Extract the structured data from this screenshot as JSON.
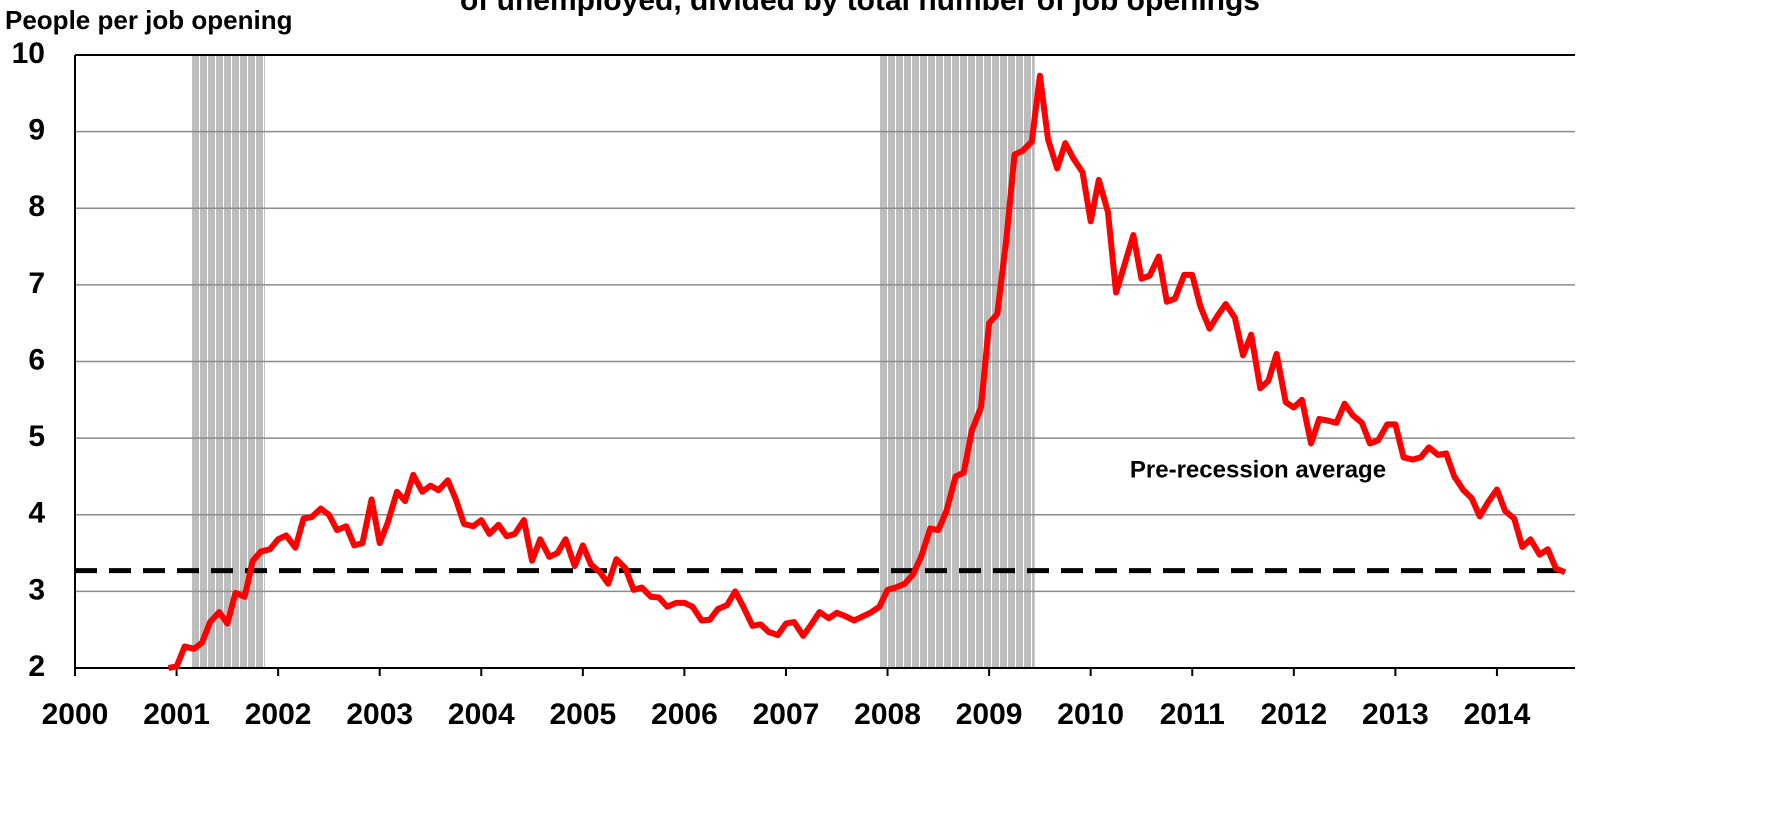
{
  "chart_data": {
    "type": "line",
    "title": "of unemployed, divided by total number of job openings",
    "y_label": "People per job opening",
    "annotation": "Pre-recession average",
    "average": 3.27,
    "recessions": [
      [
        2001.15,
        2001.87
      ],
      [
        2007.92,
        2009.45
      ]
    ],
    "color": "#ff0000",
    "x": [
      2000.92,
      2001.0,
      2001.08,
      2001.17,
      2001.25,
      2001.33,
      2001.42,
      2001.5,
      2001.58,
      2001.67,
      2001.75,
      2001.83,
      2001.92,
      2002.0,
      2002.08,
      2002.17,
      2002.25,
      2002.33,
      2002.42,
      2002.5,
      2002.58,
      2002.67,
      2002.75,
      2002.83,
      2002.92,
      2003.0,
      2003.08,
      2003.17,
      2003.25,
      2003.33,
      2003.42,
      2003.5,
      2003.58,
      2003.67,
      2003.75,
      2003.83,
      2003.92,
      2004.0,
      2004.08,
      2004.17,
      2004.25,
      2004.33,
      2004.42,
      2004.5,
      2004.58,
      2004.67,
      2004.75,
      2004.83,
      2004.92,
      2005.0,
      2005.08,
      2005.17,
      2005.25,
      2005.33,
      2005.42,
      2005.5,
      2005.58,
      2005.67,
      2005.75,
      2005.83,
      2005.92,
      2006.0,
      2006.08,
      2006.17,
      2006.25,
      2006.33,
      2006.42,
      2006.5,
      2006.58,
      2006.67,
      2006.75,
      2006.83,
      2006.92,
      2007.0,
      2007.08,
      2007.17,
      2007.25,
      2007.33,
      2007.42,
      2007.5,
      2007.58,
      2007.67,
      2007.75,
      2007.83,
      2007.92,
      2008.0,
      2008.08,
      2008.17,
      2008.25,
      2008.33,
      2008.42,
      2008.5,
      2008.58,
      2008.67,
      2008.75,
      2008.83,
      2008.92,
      2009.0,
      2009.08,
      2009.17,
      2009.25,
      2009.33,
      2009.42,
      2009.5,
      2009.58,
      2009.67,
      2009.75,
      2009.83,
      2009.92,
      2010.0,
      2010.08,
      2010.17,
      2010.25,
      2010.33,
      2010.42,
      2010.5,
      2010.58,
      2010.67,
      2010.75,
      2010.83,
      2010.92,
      2011.0,
      2011.08,
      2011.17,
      2011.25,
      2011.33,
      2011.42,
      2011.5,
      2011.58,
      2011.67,
      2011.75,
      2011.83,
      2011.92,
      2012.0,
      2012.08,
      2012.17,
      2012.25,
      2012.33,
      2012.42,
      2012.5,
      2012.58,
      2012.67,
      2012.75,
      2012.83,
      2012.92,
      2013.0,
      2013.08,
      2013.17,
      2013.25,
      2013.33,
      2013.42,
      2013.5,
      2013.58,
      2013.67,
      2013.75,
      2013.83,
      2013.92,
      2014.0,
      2014.08,
      2014.17,
      2014.25,
      2014.33,
      2014.42,
      2014.5,
      2014.58,
      2014.67
    ],
    "values": [
      2.0,
      2.02,
      2.28,
      2.25,
      2.33,
      2.6,
      2.73,
      2.58,
      2.98,
      2.93,
      3.4,
      3.52,
      3.55,
      3.68,
      3.73,
      3.57,
      3.95,
      3.97,
      4.08,
      4.0,
      3.8,
      3.85,
      3.6,
      3.63,
      4.2,
      3.63,
      3.9,
      4.3,
      4.18,
      4.52,
      4.3,
      4.38,
      4.32,
      4.45,
      4.2,
      3.88,
      3.85,
      3.93,
      3.75,
      3.87,
      3.72,
      3.75,
      3.93,
      3.4,
      3.68,
      3.45,
      3.5,
      3.68,
      3.33,
      3.6,
      3.35,
      3.25,
      3.1,
      3.42,
      3.3,
      3.02,
      3.05,
      2.93,
      2.92,
      2.8,
      2.85,
      2.85,
      2.8,
      2.62,
      2.63,
      2.77,
      2.82,
      3.0,
      2.8,
      2.55,
      2.57,
      2.47,
      2.43,
      2.58,
      2.6,
      2.42,
      2.57,
      2.73,
      2.65,
      2.72,
      2.68,
      2.62,
      2.67,
      2.72,
      2.8,
      3.02,
      3.05,
      3.1,
      3.22,
      3.45,
      3.82,
      3.8,
      4.05,
      4.5,
      4.55,
      5.1,
      5.4,
      6.5,
      6.62,
      7.6,
      8.7,
      8.75,
      8.87,
      9.73,
      8.9,
      8.52,
      8.85,
      8.65,
      8.47,
      7.83,
      8.37,
      7.95,
      6.9,
      7.25,
      7.65,
      7.08,
      7.12,
      7.37,
      6.78,
      6.82,
      7.13,
      7.13,
      6.72,
      6.43,
      6.6,
      6.75,
      6.57,
      6.08,
      6.35,
      5.65,
      5.75,
      6.1,
      5.47,
      5.4,
      5.5,
      4.93,
      5.25,
      5.23,
      5.2,
      5.45,
      5.3,
      5.2,
      4.93,
      4.97,
      5.18,
      5.18,
      4.75,
      4.72,
      4.75,
      4.88,
      4.78,
      4.8,
      4.5,
      4.32,
      4.22,
      3.98,
      4.18,
      4.33,
      4.05,
      3.95,
      3.58,
      3.68,
      3.48,
      3.55,
      3.3,
      3.25
    ],
    "xlim": [
      2000,
      2014.67
    ],
    "xticks": [
      2000,
      2001,
      2002,
      2003,
      2004,
      2005,
      2006,
      2007,
      2008,
      2009,
      2010,
      2011,
      2012,
      2013,
      2014
    ],
    "ylim": [
      2,
      10
    ],
    "yticks": [
      2,
      3,
      4,
      5,
      6,
      7,
      8,
      9,
      10
    ],
    "grid": true
  }
}
